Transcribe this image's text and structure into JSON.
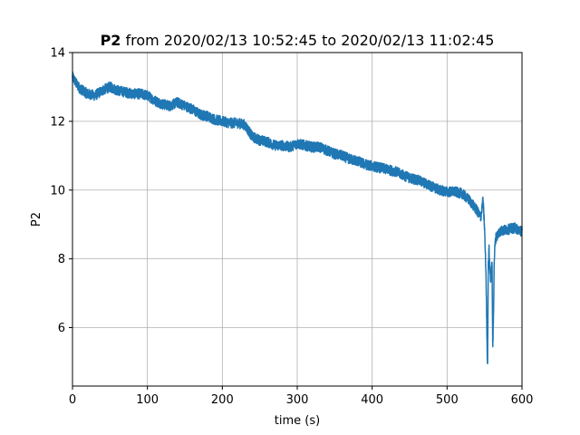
{
  "chart_data": {
    "type": "line",
    "title_bold": "P2",
    "title_rest": " from 2020/02/13 10:52:45 to 2020/02/13 11:02:45",
    "xlabel": "time (s)",
    "ylabel": "P2",
    "xlim": [
      0,
      600
    ],
    "ylim": [
      4.3,
      14
    ],
    "xticks": [
      0,
      100,
      200,
      300,
      400,
      500,
      600
    ],
    "yticks": [
      6,
      8,
      10,
      12,
      14
    ],
    "grid": true,
    "line_color": "#1f77b4",
    "noise_amplitude": 0.15,
    "series": [
      {
        "x": [
          0,
          5,
          10,
          20,
          30,
          40,
          50,
          60,
          70,
          80,
          90,
          100,
          110,
          120,
          130,
          140,
          150,
          160,
          170,
          180,
          190,
          200,
          210,
          220,
          230,
          240,
          250,
          260,
          270,
          280,
          290,
          300,
          310,
          320,
          330,
          340,
          350,
          360,
          370,
          380,
          390,
          400,
          410,
          420,
          430,
          440,
          450,
          460,
          470,
          480,
          490,
          500,
          510,
          520,
          530,
          540,
          545,
          548,
          550,
          552,
          553,
          554,
          555,
          556,
          557,
          558,
          559,
          560,
          561,
          562,
          563,
          564,
          565,
          570,
          580,
          590,
          600
        ],
        "y": [
          13.3,
          13.1,
          12.95,
          12.8,
          12.75,
          12.9,
          13.0,
          12.9,
          12.85,
          12.8,
          12.8,
          12.75,
          12.6,
          12.5,
          12.45,
          12.55,
          12.45,
          12.35,
          12.2,
          12.15,
          12.05,
          12.0,
          11.95,
          11.95,
          11.9,
          11.55,
          11.45,
          11.4,
          11.3,
          11.3,
          11.25,
          11.35,
          11.3,
          11.25,
          11.25,
          11.15,
          11.05,
          11.0,
          10.9,
          10.85,
          10.75,
          10.7,
          10.65,
          10.6,
          10.55,
          10.45,
          10.35,
          10.3,
          10.2,
          10.1,
          10.0,
          9.95,
          9.95,
          9.9,
          9.7,
          9.4,
          9.2,
          9.7,
          8.9,
          7.5,
          6.0,
          4.8,
          7.8,
          8.3,
          7.7,
          7.4,
          7.6,
          7.9,
          5.3,
          6.5,
          8.0,
          8.4,
          8.6,
          8.8,
          8.85,
          8.9,
          8.8
        ]
      }
    ]
  }
}
